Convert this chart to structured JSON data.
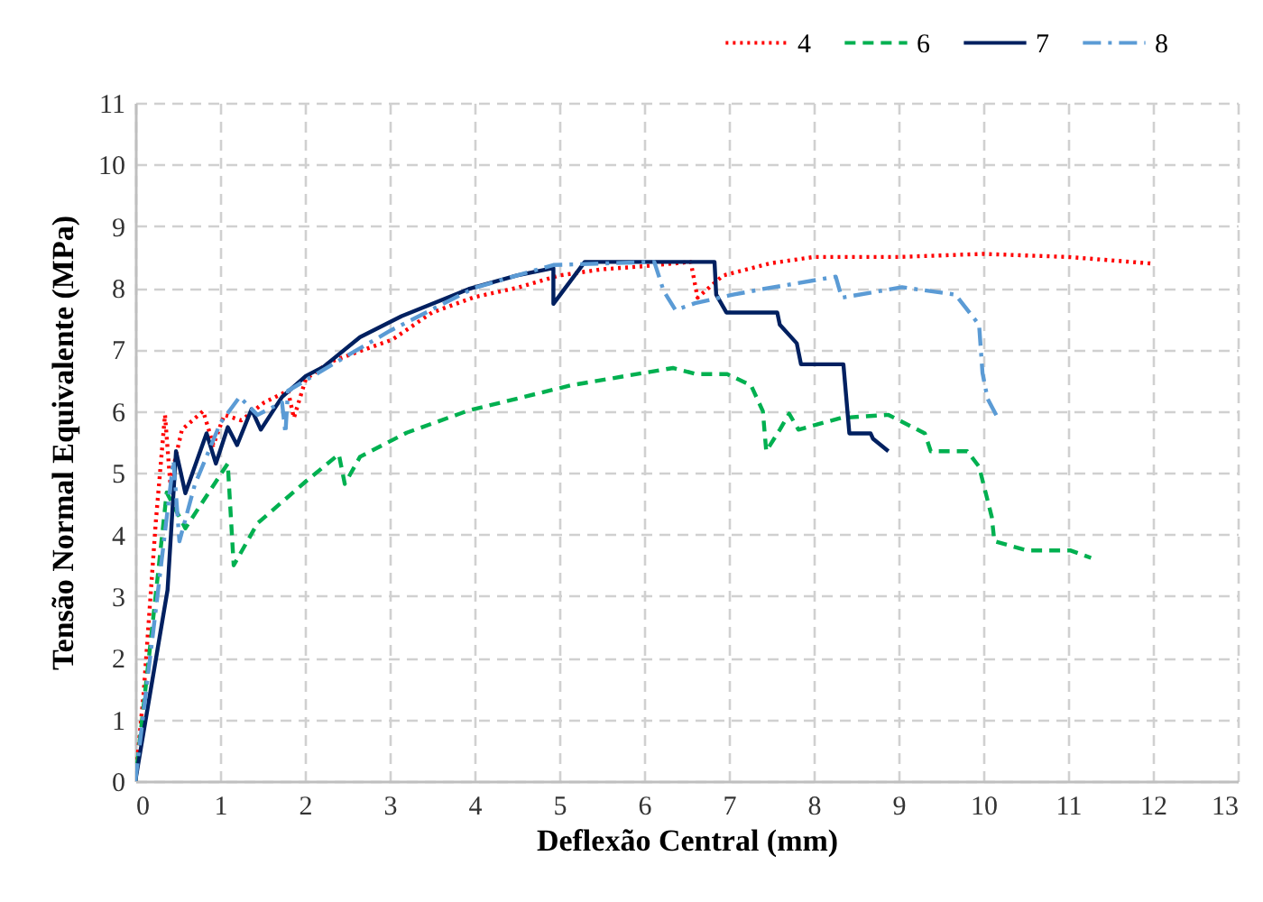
{
  "chart_data": {
    "type": "line",
    "xlabel": "Deflexão Central (mm)",
    "ylabel": "Tensão Normal  Equivalente (MPa)",
    "xlim": [
      0,
      13
    ],
    "xticks": [
      0,
      1,
      2,
      3,
      4,
      5,
      6,
      7,
      8,
      9,
      10,
      11,
      12,
      13
    ],
    "ylim": [
      0,
      11
    ],
    "yticks": [
      0,
      1,
      2,
      3,
      4,
      5,
      6,
      7,
      8,
      9,
      10,
      11
    ],
    "grid": true,
    "legend": "top right",
    "marker": "none",
    "series": [
      {
        "name": "4",
        "color": "#ff0000",
        "line_style": "dotted",
        "x": [
          0,
          0.1,
          0.24,
          0.35,
          0.41,
          0.55,
          0.8,
          0.92,
          1.05,
          1.25,
          1.52,
          1.8,
          1.87,
          2.01,
          2.3,
          3.03,
          3.5,
          4,
          4.5,
          5,
          5.5,
          6,
          6.55,
          6.63,
          6.93,
          7.5,
          8,
          9,
          10,
          11,
          12.02
        ],
        "values": [
          0,
          1.46,
          4.18,
          5.94,
          4.86,
          5.7,
          6.0,
          5.45,
          5.94,
          5.85,
          6.14,
          6.33,
          5.89,
          6.52,
          6.8,
          7.16,
          7.6,
          7.85,
          8.0,
          8.2,
          8.3,
          8.35,
          8.42,
          7.84,
          8.2,
          8.4,
          8.5,
          8.5,
          8.55,
          8.5,
          8.39
        ]
      },
      {
        "name": "6",
        "color": "#00b050",
        "line_style": "dashed",
        "x": [
          0,
          0.2,
          0.37,
          0.59,
          1.09,
          1.16,
          1.44,
          2.01,
          2.4,
          2.47,
          2.65,
          3.2,
          3.93,
          5.14,
          6.34,
          6.62,
          6.98,
          7.26,
          7.4,
          7.44,
          7.6,
          7.71,
          7.82,
          8.32,
          8.88,
          9.31,
          9.38,
          9.81,
          9.95,
          10.1,
          10.13,
          10.52,
          11.03,
          11.27
        ],
        "values": [
          0,
          2.5,
          4.68,
          4.1,
          5.15,
          3.5,
          4.18,
          4.86,
          5.3,
          4.82,
          5.26,
          5.65,
          6.01,
          6.42,
          6.7,
          6.6,
          6.6,
          6.42,
          6.0,
          5.35,
          5.7,
          5.96,
          5.7,
          5.89,
          5.94,
          5.64,
          5.35,
          5.35,
          5.1,
          4.28,
          3.89,
          3.74,
          3.74,
          3.62
        ]
      },
      {
        "name": "7",
        "color": "#002060",
        "line_style": "solid",
        "x": [
          0,
          0.38,
          0.48,
          0.59,
          0.84,
          0.95,
          1.09,
          1.2,
          1.37,
          1.48,
          1.73,
          2.01,
          2.22,
          2.65,
          3.14,
          3.93,
          4.5,
          4.93,
          4.93,
          5.3,
          6.83,
          6.85,
          6.97,
          7.57,
          7.6,
          7.8,
          7.85,
          8.35,
          8.42,
          8.67,
          8.7,
          8.88
        ],
        "values": [
          0,
          3.1,
          5.35,
          4.67,
          5.64,
          5.15,
          5.74,
          5.45,
          6.03,
          5.7,
          6.23,
          6.57,
          6.72,
          7.2,
          7.54,
          7.98,
          8.2,
          8.32,
          7.74,
          8.42,
          8.42,
          7.89,
          7.6,
          7.6,
          7.4,
          7.1,
          6.76,
          6.76,
          5.64,
          5.64,
          5.55,
          5.35
        ]
      },
      {
        "name": "8",
        "color": "#5b9bd5",
        "line_style": "dashdot",
        "x": [
          0,
          0.2,
          0.45,
          0.52,
          0.7,
          1.0,
          1.23,
          1.44,
          1.73,
          1.77,
          1.8,
          2.5,
          3,
          4,
          4.93,
          6.12,
          6.23,
          6.37,
          6.6,
          7.05,
          7.4,
          8.26,
          8.33,
          9.04,
          9.67,
          9.95,
          9.99,
          10.05,
          10.17
        ],
        "values": [
          0,
          2.3,
          5.2,
          3.89,
          4.8,
          5.8,
          6.23,
          5.94,
          6.14,
          5.64,
          6.33,
          6.9,
          7.3,
          8.0,
          8.37,
          8.42,
          7.95,
          7.64,
          7.75,
          7.89,
          7.98,
          8.18,
          7.84,
          8.01,
          7.89,
          7.4,
          6.62,
          6.2,
          5.89
        ]
      }
    ]
  }
}
